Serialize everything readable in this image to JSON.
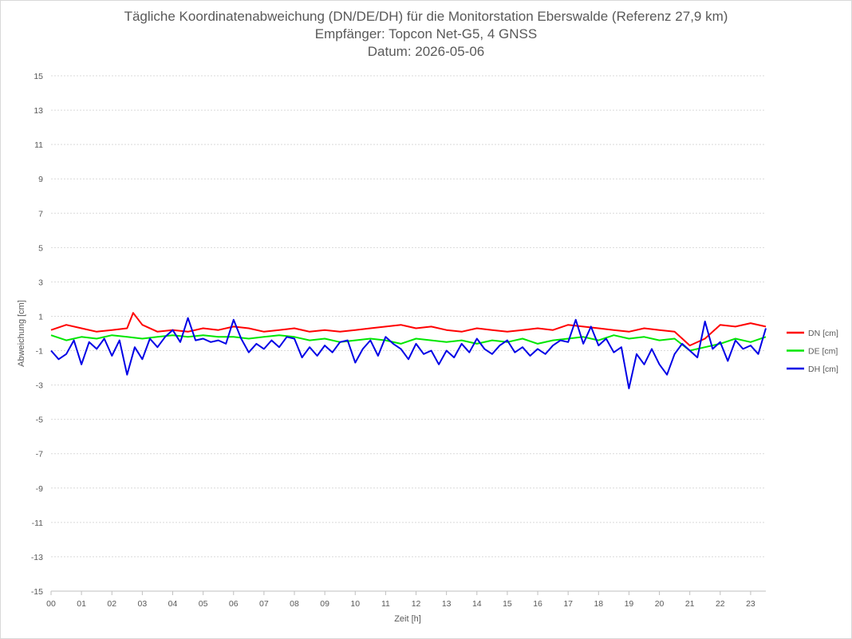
{
  "chart_data": {
    "type": "line",
    "title": "Tägliche Koordinatenabweichung (DN/DE/DH) für die Monitorstation Eberswalde (Referenz 27,9 km)",
    "subtitle_lines": [
      "Empfänger: Topcon Net-G5, 4 GNSS",
      "Datum: 2026-05-06"
    ],
    "xlabel": "Zeit [h]",
    "ylabel": "Abweichung [cm]",
    "xlim": [
      0,
      23.5
    ],
    "ylim": [
      -15,
      15
    ],
    "x_ticks": [
      "00",
      "01",
      "02",
      "03",
      "04",
      "05",
      "06",
      "07",
      "08",
      "09",
      "10",
      "11",
      "12",
      "13",
      "14",
      "15",
      "16",
      "17",
      "18",
      "19",
      "20",
      "21",
      "22",
      "23"
    ],
    "y_ticks": [
      15,
      13,
      11,
      9,
      7,
      5,
      3,
      1,
      -1,
      -3,
      -5,
      -7,
      -9,
      -11,
      -13,
      -15
    ],
    "grid": true,
    "legend_position": "right",
    "series": [
      {
        "name": "DN [cm]",
        "color": "#ff0000",
        "x": [
          0,
          0.5,
          1,
          1.5,
          2,
          2.5,
          2.7,
          3,
          3.5,
          4,
          4.5,
          5,
          5.5,
          6,
          6.5,
          7,
          7.5,
          8,
          8.5,
          9,
          9.5,
          10,
          10.5,
          11,
          11.5,
          12,
          12.5,
          13,
          13.5,
          14,
          14.5,
          15,
          15.5,
          16,
          16.5,
          17,
          17.5,
          18,
          18.5,
          19,
          19.5,
          20,
          20.5,
          21,
          21.5,
          22,
          22.5,
          23,
          23.5
        ],
        "y": [
          0.2,
          0.5,
          0.3,
          0.1,
          0.2,
          0.3,
          1.2,
          0.5,
          0.1,
          0.2,
          0.1,
          0.3,
          0.2,
          0.4,
          0.3,
          0.1,
          0.2,
          0.3,
          0.1,
          0.2,
          0.1,
          0.2,
          0.3,
          0.4,
          0.5,
          0.3,
          0.4,
          0.2,
          0.1,
          0.3,
          0.2,
          0.1,
          0.2,
          0.3,
          0.2,
          0.5,
          0.4,
          0.3,
          0.2,
          0.1,
          0.3,
          0.2,
          0.1,
          -0.7,
          -0.3,
          0.5,
          0.4,
          0.6,
          0.4
        ]
      },
      {
        "name": "DE [cm]",
        "color": "#00e600",
        "x": [
          0,
          0.5,
          1,
          1.5,
          2,
          2.5,
          3,
          3.5,
          4,
          4.5,
          5,
          5.5,
          6,
          6.5,
          7,
          7.5,
          8,
          8.5,
          9,
          9.5,
          10,
          10.5,
          11,
          11.5,
          12,
          12.5,
          13,
          13.5,
          14,
          14.5,
          15,
          15.5,
          16,
          16.5,
          17,
          17.5,
          18,
          18.5,
          19,
          19.5,
          20,
          20.5,
          21,
          21.5,
          22,
          22.5,
          23,
          23.5
        ],
        "y": [
          -0.1,
          -0.4,
          -0.2,
          -0.3,
          -0.1,
          -0.2,
          -0.3,
          -0.2,
          -0.1,
          -0.2,
          -0.1,
          -0.2,
          -0.2,
          -0.3,
          -0.2,
          -0.1,
          -0.2,
          -0.4,
          -0.3,
          -0.5,
          -0.4,
          -0.3,
          -0.4,
          -0.6,
          -0.3,
          -0.4,
          -0.5,
          -0.4,
          -0.6,
          -0.4,
          -0.5,
          -0.3,
          -0.6,
          -0.4,
          -0.3,
          -0.2,
          -0.4,
          -0.1,
          -0.3,
          -0.2,
          -0.4,
          -0.3,
          -1.0,
          -0.8,
          -0.6,
          -0.3,
          -0.5,
          -0.2
        ]
      },
      {
        "name": "DH [cm]",
        "color": "#0000e6",
        "x": [
          0,
          0.25,
          0.5,
          0.75,
          1,
          1.25,
          1.5,
          1.75,
          2,
          2.25,
          2.5,
          2.75,
          3,
          3.25,
          3.5,
          3.75,
          4,
          4.25,
          4.5,
          4.75,
          5,
          5.25,
          5.5,
          5.75,
          6,
          6.25,
          6.5,
          6.75,
          7,
          7.25,
          7.5,
          7.75,
          8,
          8.25,
          8.5,
          8.75,
          9,
          9.25,
          9.5,
          9.75,
          10,
          10.25,
          10.5,
          10.75,
          11,
          11.25,
          11.5,
          11.75,
          12,
          12.25,
          12.5,
          12.75,
          13,
          13.25,
          13.5,
          13.75,
          14,
          14.25,
          14.5,
          14.75,
          15,
          15.25,
          15.5,
          15.75,
          16,
          16.25,
          16.5,
          16.75,
          17,
          17.25,
          17.5,
          17.75,
          18,
          18.25,
          18.5,
          18.75,
          19,
          19.25,
          19.5,
          19.75,
          20,
          20.25,
          20.5,
          20.75,
          21,
          21.25,
          21.5,
          21.75,
          22,
          22.25,
          22.5,
          22.75,
          23,
          23.25,
          23.5
        ],
        "y": [
          -1.0,
          -1.5,
          -1.2,
          -0.4,
          -1.8,
          -0.5,
          -0.9,
          -0.3,
          -1.3,
          -0.4,
          -2.4,
          -0.8,
          -1.5,
          -0.3,
          -0.8,
          -0.2,
          0.2,
          -0.5,
          0.9,
          -0.4,
          -0.3,
          -0.5,
          -0.4,
          -0.6,
          0.8,
          -0.3,
          -1.1,
          -0.6,
          -0.9,
          -0.4,
          -0.8,
          -0.2,
          -0.3,
          -1.4,
          -0.8,
          -1.3,
          -0.7,
          -1.1,
          -0.5,
          -0.4,
          -1.7,
          -0.9,
          -0.4,
          -1.3,
          -0.2,
          -0.6,
          -0.9,
          -1.5,
          -0.6,
          -1.2,
          -1.0,
          -1.8,
          -1.0,
          -1.4,
          -0.6,
          -1.1,
          -0.3,
          -0.9,
          -1.2,
          -0.7,
          -0.4,
          -1.1,
          -0.8,
          -1.3,
          -0.9,
          -1.2,
          -0.7,
          -0.4,
          -0.5,
          0.8,
          -0.6,
          0.4,
          -0.7,
          -0.3,
          -1.1,
          -0.8,
          -3.2,
          -1.2,
          -1.8,
          -0.9,
          -1.8,
          -2.4,
          -1.2,
          -0.6,
          -1.0,
          -1.4,
          0.7,
          -0.9,
          -0.5,
          -1.6,
          -0.4,
          -0.9,
          -0.7,
          -1.2,
          0.3
        ]
      }
    ]
  }
}
